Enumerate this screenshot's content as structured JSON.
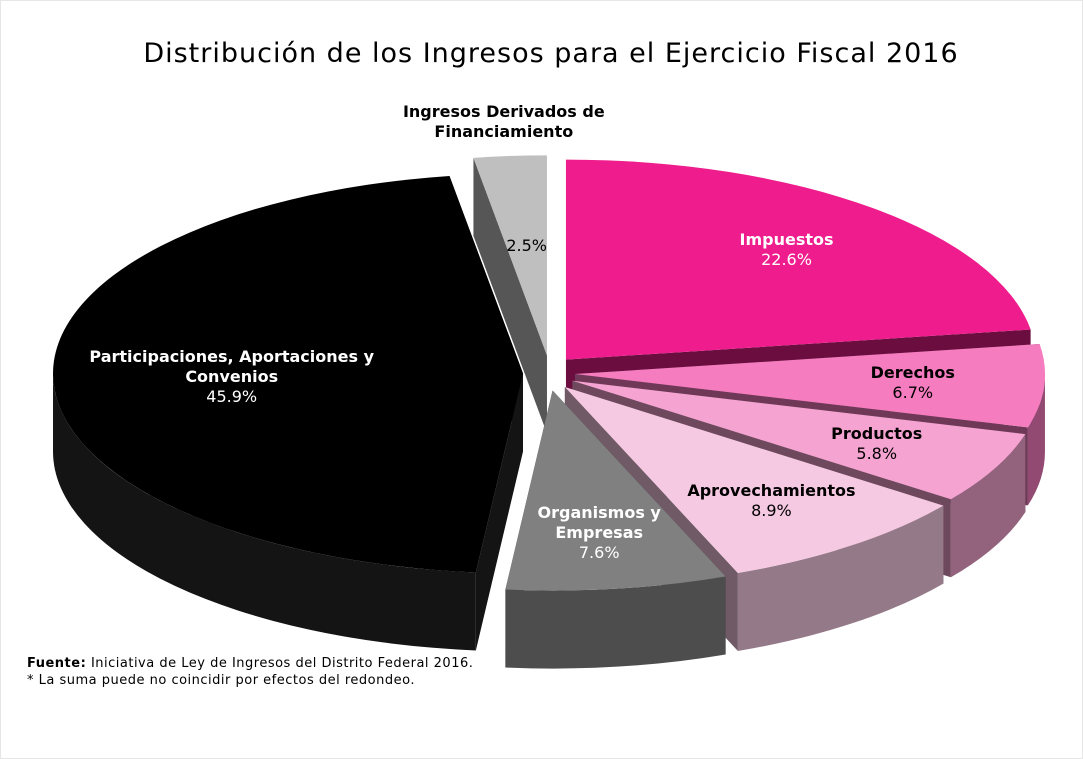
{
  "chart_data": {
    "type": "pie3d",
    "title": "Distribución de los Ingresos para el Ejercicio Fiscal 2016",
    "categories": [
      "Impuestos",
      "Derechos",
      "Productos",
      "Aprovechamientos",
      "Organismos y Empresas",
      "Participaciones, Aportaciones y Convenios",
      "Ingresos Derivados de Financiamiento"
    ],
    "values": [
      22.6,
      6.7,
      5.8,
      8.9,
      7.6,
      45.9,
      2.5
    ],
    "value_labels": [
      "22.6%",
      "6.7%",
      "5.8%",
      "8.9%",
      "7.6%",
      "45.9%",
      "2.5%"
    ],
    "colors": [
      "#ee1c8c",
      "#f47cbf",
      "#f5a3d0",
      "#f6c9e3",
      "#808080",
      "#000000",
      "#bfbfbf"
    ],
    "source_label": "Fuente:",
    "source": "Iniciativa de Ley de Ingresos del Distrito Federal 2016.",
    "note": "* La suma puede no coincidir por efectos del redondeo."
  }
}
